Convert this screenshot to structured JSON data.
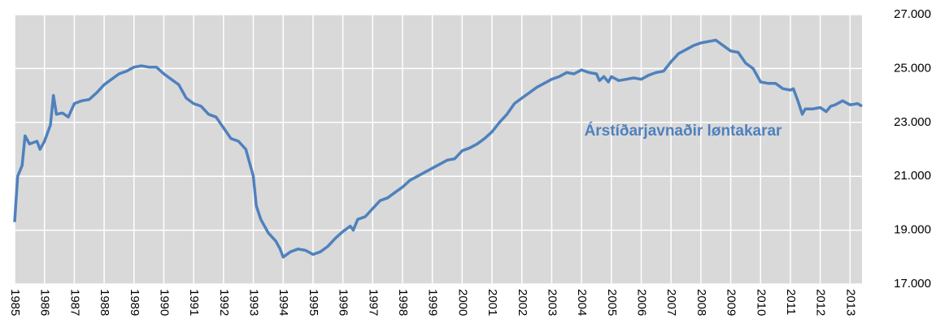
{
  "chart_data": {
    "type": "line",
    "annotation": "Árstíðarjavnaðir løntakarar",
    "x": [
      1985.0,
      1985.1,
      1985.25,
      1985.35,
      1985.5,
      1985.75,
      1985.85,
      1986.0,
      1986.2,
      1986.3,
      1986.4,
      1986.6,
      1986.8,
      1987.0,
      1987.25,
      1987.5,
      1987.75,
      1988.0,
      1988.25,
      1988.5,
      1988.75,
      1989.0,
      1989.25,
      1989.5,
      1989.75,
      1990.0,
      1990.25,
      1990.5,
      1990.75,
      1991.0,
      1991.25,
      1991.5,
      1991.75,
      1992.0,
      1992.25,
      1992.5,
      1992.75,
      1992.85,
      1993.0,
      1993.1,
      1993.25,
      1993.5,
      1993.75,
      1993.9,
      1994.0,
      1994.25,
      1994.5,
      1994.75,
      1995.0,
      1995.25,
      1995.5,
      1995.75,
      1996.0,
      1996.25,
      1996.35,
      1996.5,
      1996.75,
      1997.0,
      1997.25,
      1997.5,
      1997.75,
      1998.0,
      1998.25,
      1998.5,
      1998.75,
      1999.0,
      1999.25,
      1999.5,
      1999.75,
      2000.0,
      2000.25,
      2000.5,
      2000.75,
      2001.0,
      2001.25,
      2001.5,
      2001.75,
      2002.0,
      2002.25,
      2002.5,
      2002.75,
      2003.0,
      2003.25,
      2003.5,
      2003.75,
      2004.0,
      2004.25,
      2004.5,
      2004.6,
      2004.75,
      2004.9,
      2005.0,
      2005.25,
      2005.5,
      2005.75,
      2006.0,
      2006.25,
      2006.5,
      2006.75,
      2007.0,
      2007.25,
      2007.5,
      2007.75,
      2008.0,
      2008.25,
      2008.5,
      2008.75,
      2009.0,
      2009.25,
      2009.5,
      2009.75,
      2010.0,
      2010.25,
      2010.5,
      2010.75,
      2011.0,
      2011.1,
      2011.25,
      2011.4,
      2011.5,
      2011.75,
      2012.0,
      2012.2,
      2012.35,
      2012.5,
      2012.75,
      2013.0,
      2013.25,
      2013.4
    ],
    "series": [
      {
        "name": "Árstíðarjavnaðir løntakarar",
        "color": "#4f81bd",
        "values": [
          19300,
          21000,
          21400,
          22500,
          22200,
          22300,
          22000,
          22300,
          22900,
          24000,
          23300,
          23350,
          23200,
          23700,
          23800,
          23850,
          24100,
          24400,
          24600,
          24800,
          24900,
          25050,
          25100,
          25050,
          25050,
          24800,
          24600,
          24400,
          23900,
          23700,
          23600,
          23300,
          23200,
          22800,
          22400,
          22300,
          22000,
          21600,
          21000,
          19900,
          19400,
          18900,
          18600,
          18300,
          18000,
          18200,
          18300,
          18250,
          18100,
          18200,
          18400,
          18700,
          18950,
          19150,
          19000,
          19400,
          19500,
          19800,
          20100,
          20200,
          20400,
          20600,
          20850,
          21000,
          21150,
          21300,
          21450,
          21600,
          21650,
          21950,
          22050,
          22200,
          22400,
          22650,
          23000,
          23300,
          23700,
          23900,
          24100,
          24300,
          24450,
          24600,
          24700,
          24850,
          24800,
          24950,
          24850,
          24800,
          24550,
          24700,
          24500,
          24700,
          24550,
          24600,
          24650,
          24600,
          24750,
          24850,
          24900,
          25250,
          25550,
          25700,
          25850,
          25950,
          26000,
          26050,
          25850,
          25650,
          25600,
          25200,
          25000,
          24500,
          24450,
          24450,
          24250,
          24200,
          24250,
          23800,
          23300,
          23500,
          23500,
          23550,
          23400,
          23600,
          23650,
          23800,
          23650,
          23700,
          23600
        ]
      }
    ],
    "xlim": [
      1985,
      2013.4
    ],
    "xticks": [
      1985,
      1986,
      1987,
      1988,
      1989,
      1990,
      1991,
      1992,
      1993,
      1994,
      1995,
      1996,
      1997,
      1998,
      1999,
      2000,
      2001,
      2002,
      2003,
      2004,
      2005,
      2006,
      2007,
      2008,
      2009,
      2010,
      2011,
      2012,
      2013
    ],
    "ylim": [
      17000,
      27000
    ],
    "yticks": [
      {
        "value": 17000,
        "label": "17.000"
      },
      {
        "value": 19000,
        "label": "19.000"
      },
      {
        "value": 21000,
        "label": "21.000"
      },
      {
        "value": 23000,
        "label": "23.000"
      },
      {
        "value": 25000,
        "label": "25.000"
      },
      {
        "value": 27000,
        "label": "27.000"
      }
    ],
    "grid": true,
    "y_axis_side": "right"
  }
}
